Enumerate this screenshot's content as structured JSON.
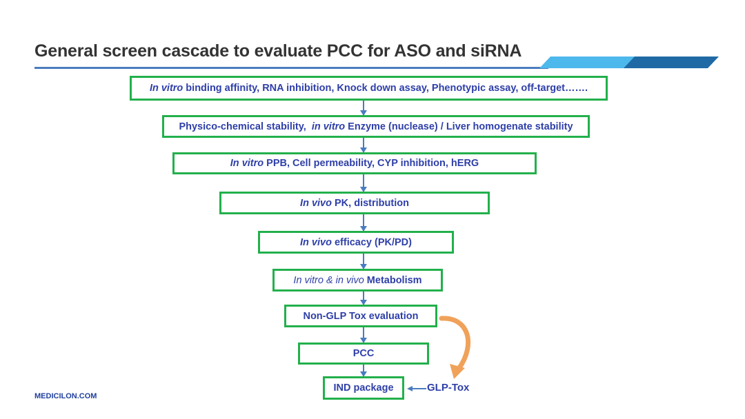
{
  "title": "General screen cascade to evaluate PCC for ASO and siRNA",
  "colors": {
    "box_border": "#22b04b",
    "text": "#2e3fa8",
    "arrow": "#4a7cc0",
    "curved_arrow": "#f0a25a",
    "banner_light": "#4db8ec",
    "banner_dark": "#1f6aa5"
  },
  "boxes": [
    {
      "parts": [
        {
          "text": "In vitro",
          "italic": true
        },
        {
          "text": " binding affinity, RNA inhibition, Knock down assay, Phenotypic assay, off-target……."
        }
      ]
    },
    {
      "parts": [
        {
          "text": "Physico-chemical stability,  "
        },
        {
          "text": "in vitro",
          "italic": true
        },
        {
          "text": " Enzyme (nuclease) / Liver homogenate stability"
        }
      ]
    },
    {
      "parts": [
        {
          "text": "In vitro",
          "italic": true
        },
        {
          "text": " PPB, Cell permeability, CYP inhibition, hERG"
        }
      ]
    },
    {
      "parts": [
        {
          "text": "In vivo",
          "italic": true
        },
        {
          "text": " PK, distribution"
        }
      ]
    },
    {
      "parts": [
        {
          "text": "In vivo",
          "italic": true
        },
        {
          "text": " efficacy (PK/PD)"
        }
      ]
    },
    {
      "parts": [
        {
          "text": "In vitro & in vivo ",
          "italic": true,
          "bold": false
        },
        {
          "text": "Metabolism"
        }
      ]
    },
    {
      "parts": [
        {
          "text": "Non-GLP Tox evaluation"
        }
      ]
    },
    {
      "parts": [
        {
          "text": "PCC"
        }
      ]
    },
    {
      "parts": [
        {
          "text": "IND package"
        }
      ]
    }
  ],
  "side_input": "GLP-Tox",
  "footer": "MEDICILON.COM"
}
